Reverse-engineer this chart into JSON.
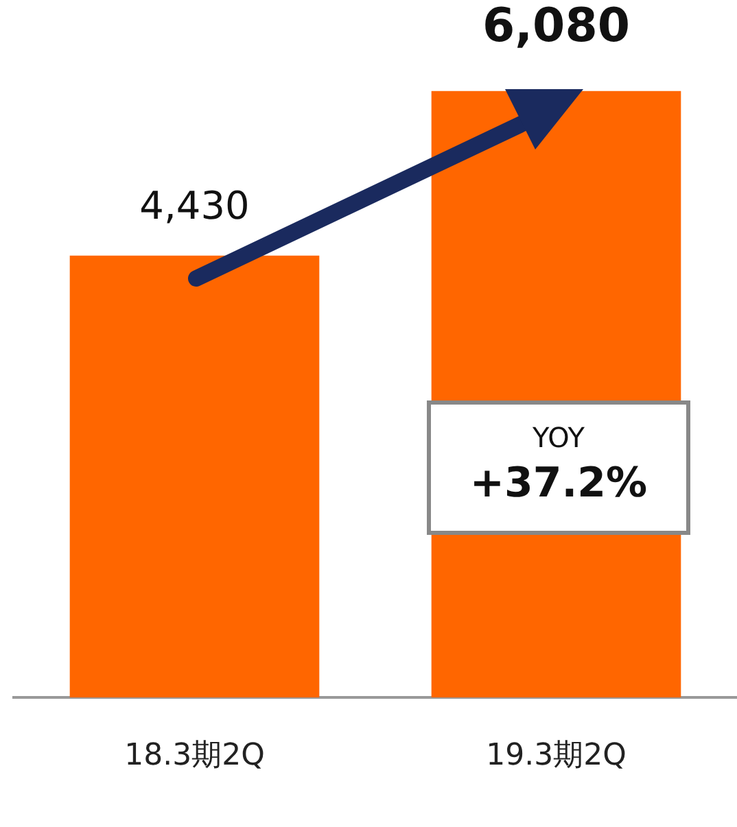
{
  "chart_data": {
    "type": "bar",
    "categories": [
      "18.3期2Q",
      "19.3期2Q"
    ],
    "values": [
      4430,
      6080
    ],
    "value_labels": [
      "4,430",
      "6,080"
    ],
    "color": "#ff6600",
    "grid": false,
    "legend": false,
    "annotations": [
      "YOY",
      "+37.2%"
    ]
  }
}
